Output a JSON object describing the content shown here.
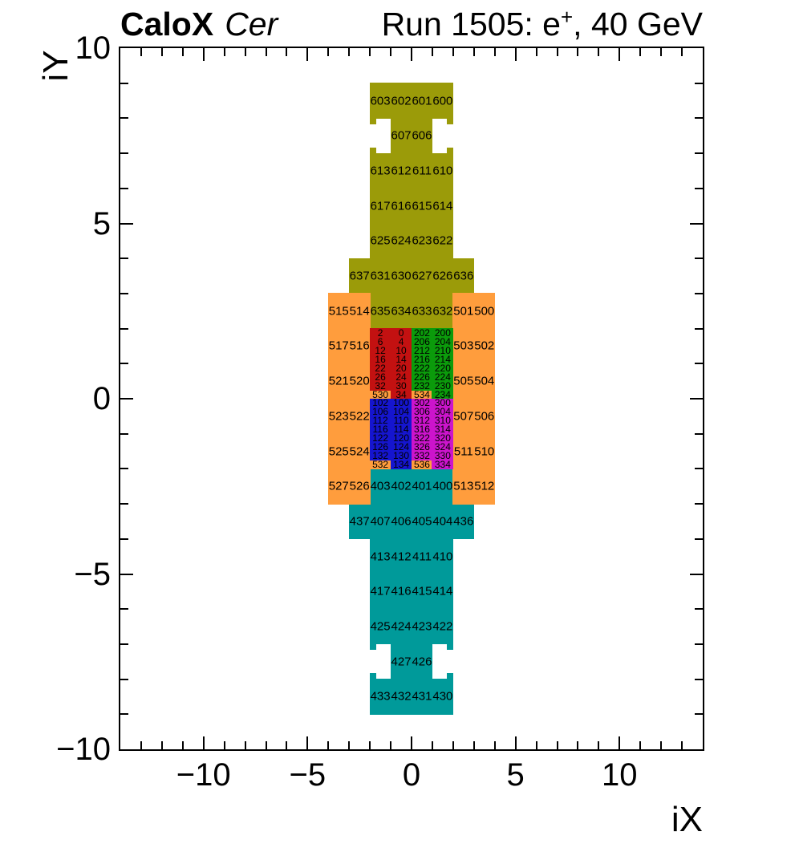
{
  "header": {
    "left_bold": "CaloX",
    "left_italic": "Cer",
    "right_prefix": "Run 1505: e",
    "right_sup": "+",
    "right_suffix": ", 40 GeV"
  },
  "axes": {
    "x_title": "iX",
    "y_title": "iY"
  },
  "chart_data": {
    "type": "heatmap",
    "title_left": "CaloX Cer",
    "title_right": "Run 1505: e+, 40 GeV",
    "xlabel": "iX",
    "ylabel": "iY",
    "xlim": [
      -14,
      14
    ],
    "ylim": [
      -10,
      10
    ],
    "grid": false,
    "minor_tick_step": 1,
    "x_major_ticks": [
      {
        "v": -10,
        "label": "−10"
      },
      {
        "v": -5,
        "label": "−5"
      },
      {
        "v": 0,
        "label": "0"
      },
      {
        "v": 5,
        "label": "5"
      },
      {
        "v": 10,
        "label": "10"
      }
    ],
    "y_major_ticks": [
      {
        "v": 10,
        "label": "10"
      },
      {
        "v": 5,
        "label": "5"
      },
      {
        "v": 0,
        "label": "0"
      },
      {
        "v": -5,
        "label": "−5"
      },
      {
        "v": -10,
        "label": "−10"
      }
    ],
    "colors": {
      "olive": "#9b9b09",
      "teal": "#009a9a",
      "orange": "#ff9d3d",
      "red": "#c31111",
      "green": "#0b9b0b",
      "blue": "#1515cf",
      "magenta": "#cc14cc"
    },
    "regions": [
      {
        "name": "outer-top-olive",
        "color": "olive",
        "rects": [
          [
            -2,
            8,
            2,
            9
          ],
          [
            -1,
            7,
            1,
            8
          ],
          [
            -2,
            4,
            2,
            7
          ],
          [
            -3,
            3,
            3,
            4
          ],
          [
            -2,
            2,
            2,
            3
          ],
          [
            -2,
            7.84,
            -1.73,
            8
          ],
          [
            1.73,
            7.84,
            2,
            8
          ],
          [
            -2,
            7,
            -1.73,
            7.16
          ],
          [
            1.73,
            7,
            2,
            7.16
          ]
        ]
      },
      {
        "name": "outer-bottom-teal",
        "color": "teal",
        "rects": [
          [
            -2,
            -3,
            2,
            -2
          ],
          [
            -3,
            -4,
            3,
            -3
          ],
          [
            -2,
            -7,
            2,
            -4
          ],
          [
            -1,
            -8,
            1,
            -7
          ],
          [
            -2,
            -9,
            2,
            -8
          ],
          [
            -2,
            -7.16,
            -1.73,
            -7
          ],
          [
            1.73,
            -7.16,
            2,
            -7
          ],
          [
            -2,
            -8,
            -1.73,
            -7.84
          ],
          [
            1.73,
            -8,
            2,
            -7.84
          ]
        ]
      },
      {
        "name": "middle-ring-orange",
        "color": "orange",
        "rects": [
          [
            -4,
            -3,
            -2,
            3
          ],
          [
            2,
            -3,
            4,
            3
          ],
          [
            -2,
            0,
            -1,
            0.25
          ],
          [
            0,
            0,
            1,
            0.25
          ],
          [
            -2,
            -2,
            -1,
            -1.75
          ],
          [
            0,
            -2,
            1,
            -1.75
          ]
        ]
      },
      {
        "name": "core-upper-left-red",
        "color": "red",
        "rects": [
          [
            -2,
            0.25,
            0,
            2
          ],
          [
            -1,
            0,
            0,
            0.25
          ]
        ]
      },
      {
        "name": "core-upper-right-green",
        "color": "green",
        "rects": [
          [
            0,
            0.25,
            2,
            2
          ],
          [
            1,
            0,
            2,
            0.25
          ]
        ]
      },
      {
        "name": "core-lower-left-blue",
        "color": "blue",
        "rects": [
          [
            -2,
            -1.75,
            0,
            0
          ],
          [
            -1,
            -2,
            0,
            -1.75
          ]
        ]
      },
      {
        "name": "core-lower-right-magenta",
        "color": "magenta",
        "rects": [
          [
            0,
            -1.75,
            2,
            0
          ],
          [
            1,
            -2,
            2,
            -1.75
          ]
        ]
      }
    ],
    "cells": [
      [
        "603",
        -1.5,
        8.5,
        0
      ],
      [
        "602",
        -0.5,
        8.5,
        0
      ],
      [
        "601",
        0.5,
        8.5,
        0
      ],
      [
        "600",
        1.5,
        8.5,
        0
      ],
      [
        "607",
        -0.5,
        7.5,
        0
      ],
      [
        "606",
        0.5,
        7.5,
        0
      ],
      [
        "613",
        -1.5,
        6.5,
        0
      ],
      [
        "612",
        -0.5,
        6.5,
        0
      ],
      [
        "611",
        0.5,
        6.5,
        0
      ],
      [
        "610",
        1.5,
        6.5,
        0
      ],
      [
        "617",
        -1.5,
        5.5,
        0
      ],
      [
        "616",
        -0.5,
        5.5,
        0
      ],
      [
        "615",
        0.5,
        5.5,
        0
      ],
      [
        "614",
        1.5,
        5.5,
        0
      ],
      [
        "625",
        -1.5,
        4.5,
        0
      ],
      [
        "624",
        -0.5,
        4.5,
        0
      ],
      [
        "623",
        0.5,
        4.5,
        0
      ],
      [
        "622",
        1.5,
        4.5,
        0
      ],
      [
        "637",
        -2.5,
        3.5,
        0
      ],
      [
        "631",
        -1.5,
        3.5,
        0
      ],
      [
        "630",
        -0.5,
        3.5,
        0
      ],
      [
        "627",
        0.5,
        3.5,
        0
      ],
      [
        "626",
        1.5,
        3.5,
        0
      ],
      [
        "636",
        2.5,
        3.5,
        0
      ],
      [
        "635",
        -1.5,
        2.5,
        0
      ],
      [
        "634",
        -0.5,
        2.5,
        0
      ],
      [
        "633",
        0.5,
        2.5,
        0
      ],
      [
        "632",
        1.5,
        2.5,
        0
      ],
      [
        "515",
        -3.5,
        2.5,
        0
      ],
      [
        "514",
        -2.5,
        2.5,
        0
      ],
      [
        "501",
        2.5,
        2.5,
        0
      ],
      [
        "500",
        3.5,
        2.5,
        0
      ],
      [
        "517",
        -3.5,
        1.5,
        0
      ],
      [
        "516",
        -2.5,
        1.5,
        0
      ],
      [
        "503",
        2.5,
        1.5,
        0
      ],
      [
        "502",
        3.5,
        1.5,
        0
      ],
      [
        "521",
        -3.5,
        0.5,
        0
      ],
      [
        "520",
        -2.5,
        0.5,
        0
      ],
      [
        "505",
        2.5,
        0.5,
        0
      ],
      [
        "504",
        3.5,
        0.5,
        0
      ],
      [
        "523",
        -3.5,
        -0.5,
        0
      ],
      [
        "522",
        -2.5,
        -0.5,
        0
      ],
      [
        "507",
        2.5,
        -0.5,
        0
      ],
      [
        "506",
        3.5,
        -0.5,
        0
      ],
      [
        "525",
        -3.5,
        -1.5,
        0
      ],
      [
        "524",
        -2.5,
        -1.5,
        0
      ],
      [
        "511",
        2.5,
        -1.5,
        0
      ],
      [
        "510",
        3.5,
        -1.5,
        0
      ],
      [
        "527",
        -3.5,
        -2.5,
        0
      ],
      [
        "526",
        -2.5,
        -2.5,
        0
      ],
      [
        "513",
        2.5,
        -2.5,
        0
      ],
      [
        "512",
        3.5,
        -2.5,
        0
      ],
      [
        "2",
        -1.5,
        1.875,
        1
      ],
      [
        "0",
        -0.5,
        1.875,
        1
      ],
      [
        "202",
        0.5,
        1.875,
        1
      ],
      [
        "200",
        1.5,
        1.875,
        1
      ],
      [
        "6",
        -1.5,
        1.625,
        1
      ],
      [
        "4",
        -0.5,
        1.625,
        1
      ],
      [
        "206",
        0.5,
        1.625,
        1
      ],
      [
        "204",
        1.5,
        1.625,
        1
      ],
      [
        "12",
        -1.5,
        1.375,
        1
      ],
      [
        "10",
        -0.5,
        1.375,
        1
      ],
      [
        "212",
        0.5,
        1.375,
        1
      ],
      [
        "210",
        1.5,
        1.375,
        1
      ],
      [
        "16",
        -1.5,
        1.125,
        1
      ],
      [
        "14",
        -0.5,
        1.125,
        1
      ],
      [
        "216",
        0.5,
        1.125,
        1
      ],
      [
        "214",
        1.5,
        1.125,
        1
      ],
      [
        "22",
        -1.5,
        0.875,
        1
      ],
      [
        "20",
        -0.5,
        0.875,
        1
      ],
      [
        "222",
        0.5,
        0.875,
        1
      ],
      [
        "220",
        1.5,
        0.875,
        1
      ],
      [
        "26",
        -1.5,
        0.625,
        1
      ],
      [
        "24",
        -0.5,
        0.625,
        1
      ],
      [
        "226",
        0.5,
        0.625,
        1
      ],
      [
        "224",
        1.5,
        0.625,
        1
      ],
      [
        "32",
        -1.5,
        0.375,
        1
      ],
      [
        "30",
        -0.5,
        0.375,
        1
      ],
      [
        "232",
        0.5,
        0.375,
        1
      ],
      [
        "230",
        1.5,
        0.375,
        1
      ],
      [
        "530",
        -1.5,
        0.125,
        1
      ],
      [
        "34",
        -0.5,
        0.125,
        1
      ],
      [
        "534",
        0.5,
        0.125,
        1
      ],
      [
        "234",
        1.5,
        0.125,
        1
      ],
      [
        "102",
        -1.5,
        -0.125,
        1
      ],
      [
        "100",
        -0.5,
        -0.125,
        1
      ],
      [
        "302",
        0.5,
        -0.125,
        1
      ],
      [
        "300",
        1.5,
        -0.125,
        1
      ],
      [
        "106",
        -1.5,
        -0.375,
        1
      ],
      [
        "104",
        -0.5,
        -0.375,
        1
      ],
      [
        "306",
        0.5,
        -0.375,
        1
      ],
      [
        "304",
        1.5,
        -0.375,
        1
      ],
      [
        "112",
        -1.5,
        -0.625,
        1
      ],
      [
        "110",
        -0.5,
        -0.625,
        1
      ],
      [
        "312",
        0.5,
        -0.625,
        1
      ],
      [
        "310",
        1.5,
        -0.625,
        1
      ],
      [
        "116",
        -1.5,
        -0.875,
        1
      ],
      [
        "114",
        -0.5,
        -0.875,
        1
      ],
      [
        "316",
        0.5,
        -0.875,
        1
      ],
      [
        "314",
        1.5,
        -0.875,
        1
      ],
      [
        "122",
        -1.5,
        -1.125,
        1
      ],
      [
        "120",
        -0.5,
        -1.125,
        1
      ],
      [
        "322",
        0.5,
        -1.125,
        1
      ],
      [
        "320",
        1.5,
        -1.125,
        1
      ],
      [
        "126",
        -1.5,
        -1.375,
        1
      ],
      [
        "124",
        -0.5,
        -1.375,
        1
      ],
      [
        "326",
        0.5,
        -1.375,
        1
      ],
      [
        "324",
        1.5,
        -1.375,
        1
      ],
      [
        "132",
        -1.5,
        -1.625,
        1
      ],
      [
        "130",
        -0.5,
        -1.625,
        1
      ],
      [
        "332",
        0.5,
        -1.625,
        1
      ],
      [
        "330",
        1.5,
        -1.625,
        1
      ],
      [
        "532",
        -1.5,
        -1.875,
        1
      ],
      [
        "134",
        -0.5,
        -1.875,
        1
      ],
      [
        "536",
        0.5,
        -1.875,
        1
      ],
      [
        "334",
        1.5,
        -1.875,
        1
      ],
      [
        "403",
        -1.5,
        -2.5,
        0
      ],
      [
        "402",
        -0.5,
        -2.5,
        0
      ],
      [
        "401",
        0.5,
        -2.5,
        0
      ],
      [
        "400",
        1.5,
        -2.5,
        0
      ],
      [
        "437",
        -2.5,
        -3.5,
        0
      ],
      [
        "407",
        -1.5,
        -3.5,
        0
      ],
      [
        "406",
        -0.5,
        -3.5,
        0
      ],
      [
        "405",
        0.5,
        -3.5,
        0
      ],
      [
        "404",
        1.5,
        -3.5,
        0
      ],
      [
        "436",
        2.5,
        -3.5,
        0
      ],
      [
        "413",
        -1.5,
        -4.5,
        0
      ],
      [
        "412",
        -0.5,
        -4.5,
        0
      ],
      [
        "411",
        0.5,
        -4.5,
        0
      ],
      [
        "410",
        1.5,
        -4.5,
        0
      ],
      [
        "417",
        -1.5,
        -5.5,
        0
      ],
      [
        "416",
        -0.5,
        -5.5,
        0
      ],
      [
        "415",
        0.5,
        -5.5,
        0
      ],
      [
        "414",
        1.5,
        -5.5,
        0
      ],
      [
        "425",
        -1.5,
        -6.5,
        0
      ],
      [
        "424",
        -0.5,
        -6.5,
        0
      ],
      [
        "423",
        0.5,
        -6.5,
        0
      ],
      [
        "422",
        1.5,
        -6.5,
        0
      ],
      [
        "427",
        -0.5,
        -7.5,
        0
      ],
      [
        "426",
        0.5,
        -7.5,
        0
      ],
      [
        "433",
        -1.5,
        -8.5,
        0
      ],
      [
        "432",
        -0.5,
        -8.5,
        0
      ],
      [
        "431",
        0.5,
        -8.5,
        0
      ],
      [
        "430",
        1.5,
        -8.5,
        0
      ]
    ]
  }
}
